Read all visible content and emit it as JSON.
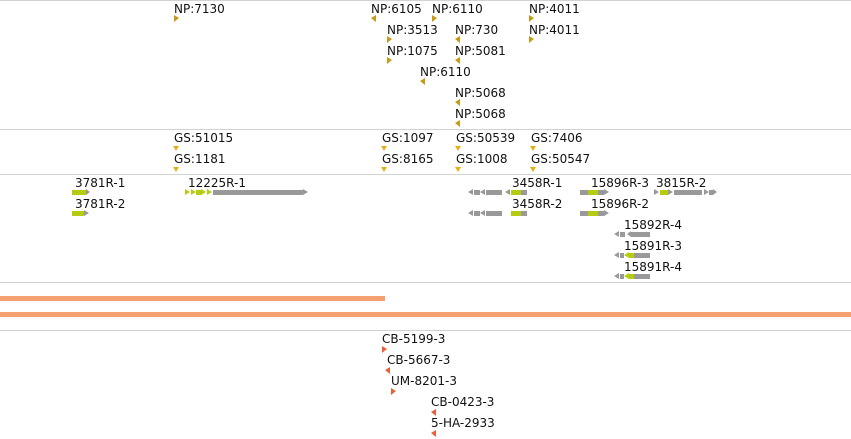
{
  "colors": {
    "np_marker": "#c79a16",
    "gs_marker": "#e4b015",
    "cb_marker": "#e8613b",
    "gene_grey": "#999999",
    "gene_yellow": "#b5cc10",
    "orange_track": "#f4a070",
    "separator": "#d2d2d2"
  },
  "tracks": {
    "np": {
      "items": [
        {
          "label": "NP:7130",
          "dir": "right"
        },
        {
          "label": "NP:6105",
          "dir": "left"
        },
        {
          "label": "NP:6110",
          "dir": "right"
        },
        {
          "label": "NP:4011",
          "dir": "right"
        },
        {
          "label": "NP:3513",
          "dir": "right"
        },
        {
          "label": "NP:730",
          "dir": "left"
        },
        {
          "label": "NP:4011",
          "dir": "right"
        },
        {
          "label": "NP:1075",
          "dir": "right"
        },
        {
          "label": "NP:5081",
          "dir": "left"
        },
        {
          "label": "NP:6110",
          "dir": "left"
        },
        {
          "label": "NP:5068",
          "dir": "left"
        },
        {
          "label": "NP:5068",
          "dir": "left"
        }
      ]
    },
    "gs": {
      "items": [
        {
          "label": "GS:51015",
          "dir": "down"
        },
        {
          "label": "GS:1097",
          "dir": "down"
        },
        {
          "label": "GS:50539",
          "dir": "down"
        },
        {
          "label": "GS:7406",
          "dir": "down"
        },
        {
          "label": "GS:1181",
          "dir": "down"
        },
        {
          "label": "GS:8165",
          "dir": "down"
        },
        {
          "label": "GS:1008",
          "dir": "down"
        },
        {
          "label": "GS:50547",
          "dir": "down"
        }
      ]
    },
    "genes": {
      "items": [
        {
          "label": "3781R-1"
        },
        {
          "label": "3781R-2"
        },
        {
          "label": "12225R-1"
        },
        {
          "label": "3458R-1"
        },
        {
          "label": "3458R-2"
        },
        {
          "label": "15896R-3"
        },
        {
          "label": "15896R-2"
        },
        {
          "label": "3815R-2"
        },
        {
          "label": "15892R-4"
        },
        {
          "label": "15891R-3"
        },
        {
          "label": "15891R-4"
        }
      ]
    },
    "cb": {
      "items": [
        {
          "label": "CB-5199-3",
          "dir": "right"
        },
        {
          "label": "CB-5667-3",
          "dir": "left"
        },
        {
          "label": "UM-8201-3",
          "dir": "right"
        },
        {
          "label": "CB-0423-3",
          "dir": "left"
        },
        {
          "label": "5-HA-2933",
          "dir": "left"
        }
      ]
    }
  }
}
